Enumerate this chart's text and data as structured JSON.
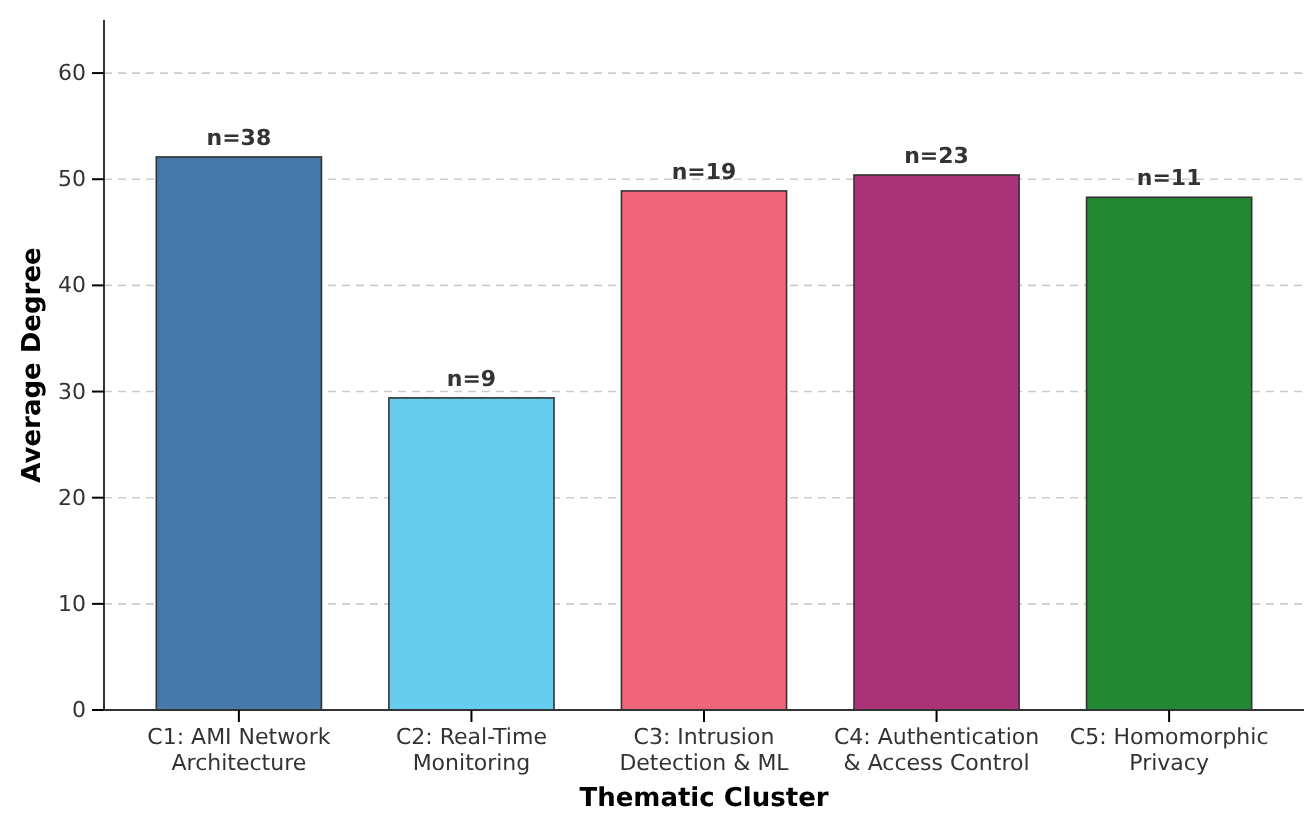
{
  "chart_data": {
    "type": "bar",
    "xlabel": "Thematic Cluster",
    "ylabel": "Average Degree",
    "categories": [
      "C1: AMI Network Architecture",
      "C2: Real-Time Monitoring",
      "C3: Intrusion Detection & ML",
      "C4: Authentication & Access Control",
      "C5: Homomorphic Privacy"
    ],
    "values": [
      52.1,
      29.4,
      48.9,
      50.4,
      48.3
    ],
    "colors": [
      "#4479aa",
      "#66ccee",
      "#ee6677",
      "#aa3377",
      "#228833"
    ],
    "annotations": [
      {
        "text": "n=38",
        "x": "C1: AMI Network Architecture",
        "y": 52.1
      },
      {
        "text": "n=9",
        "x": "C2: Real-Time Monitoring",
        "y": 29.4
      },
      {
        "text": "n=19",
        "x": "C3: Intrusion Detection & ML",
        "y": 48.9
      },
      {
        "text": "n=23",
        "x": "C4: Authentication & Access Control",
        "y": 50.4
      },
      {
        "text": "n=11",
        "x": "C5: Homomorphic Privacy",
        "y": 48.3
      }
    ],
    "ylim": [
      0,
      65
    ],
    "yticks": [
      0,
      10,
      20,
      30,
      40,
      50,
      60
    ],
    "grid": "y"
  }
}
